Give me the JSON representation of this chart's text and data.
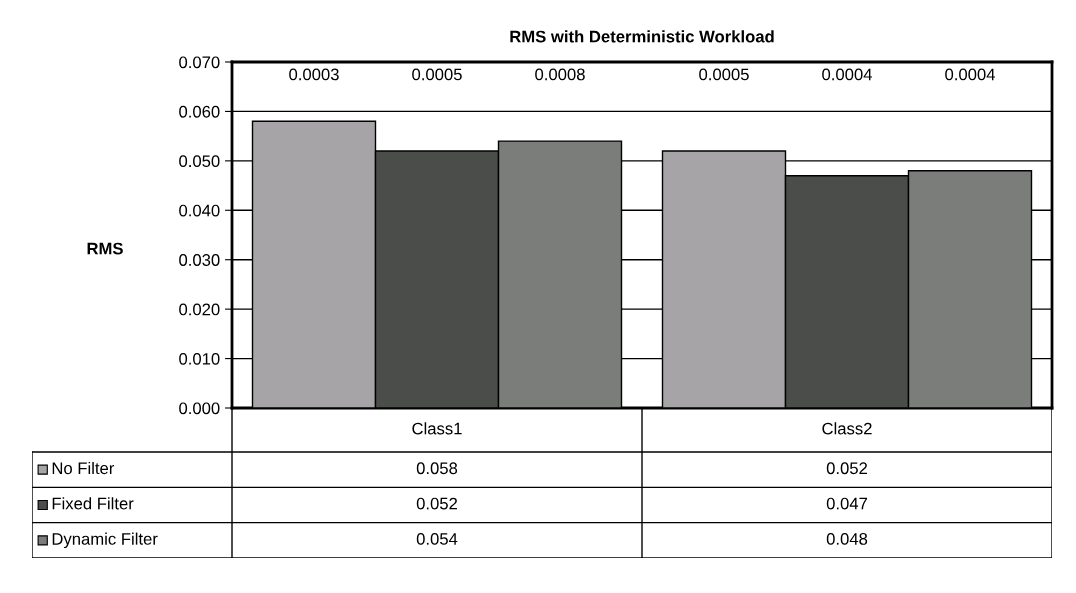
{
  "chart_data": {
    "type": "bar",
    "title": "RMS with Deterministic Workload",
    "ylabel": "RMS",
    "categories": [
      "Class1",
      "Class2"
    ],
    "series": [
      {
        "name": "No Filter",
        "color": "#a6a4a6",
        "values": [
          0.058,
          0.052
        ]
      },
      {
        "name": "Fixed Filter",
        "color": "#4b4d4a",
        "values": [
          0.052,
          0.047
        ]
      },
      {
        "name": "Dynamic Filter",
        "color": "#7b7d7a",
        "values": [
          0.054,
          0.048
        ]
      }
    ],
    "ylim": [
      0,
      0.07
    ],
    "yticks": [
      {
        "value": 0,
        "label": "0.000"
      },
      {
        "value": 0.01,
        "label": "0.010"
      },
      {
        "value": 0.02,
        "label": "0.020"
      },
      {
        "value": 0.03,
        "label": "0.030"
      },
      {
        "value": 0.04,
        "label": "0.040"
      },
      {
        "value": 0.05,
        "label": "0.050"
      },
      {
        "value": 0.06,
        "label": "0.060"
      },
      {
        "value": 0.07,
        "label": "0.070"
      }
    ],
    "grid": "y",
    "legend": "bottom",
    "data_labels": true,
    "annotations": [
      "0.0003",
      "0.0005",
      "0.0008",
      "0.0005",
      "0.0004",
      "0.0004"
    ]
  }
}
